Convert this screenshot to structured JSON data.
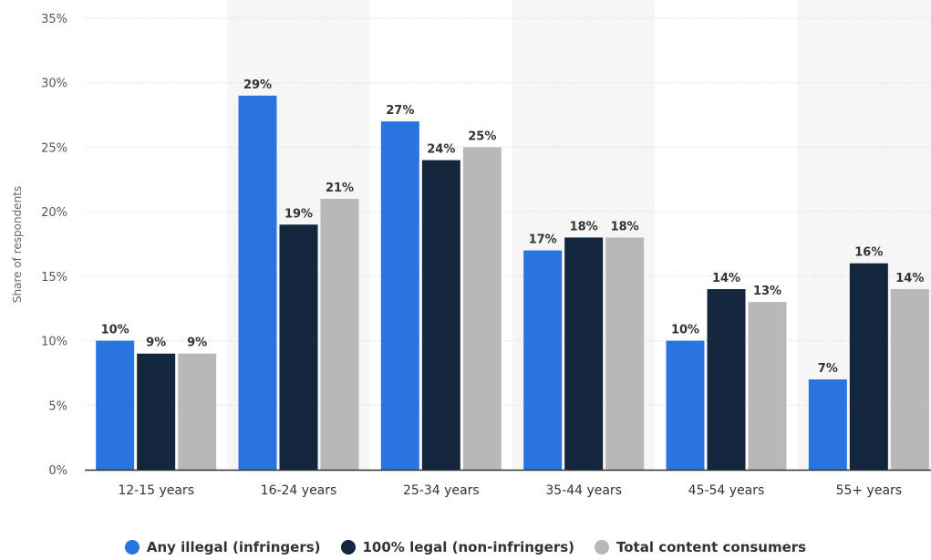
{
  "chart_data": {
    "type": "bar",
    "ylabel": "Share of respondents",
    "xlabel": "",
    "ylim": [
      0,
      35
    ],
    "yticks": [
      0,
      5,
      10,
      15,
      20,
      25,
      30,
      35
    ],
    "y_tick_suffix": "%",
    "categories": [
      "12-15 years",
      "16-24 years",
      "25-34 years",
      "35-44 years",
      "45-54 years",
      "55+ years"
    ],
    "series": [
      {
        "name": "Any illegal (infringers)",
        "color": "#2a74e0",
        "values": [
          10,
          29,
          27,
          17,
          10,
          7
        ]
      },
      {
        "name": "100% legal (non-infringers)",
        "color": "#13263d",
        "values": [
          9,
          19,
          24,
          18,
          14,
          16
        ]
      },
      {
        "name": "Total content consumers",
        "color": "#b8b8b8",
        "values": [
          9,
          21,
          25,
          18,
          13,
          14
        ]
      }
    ],
    "value_suffix": "%",
    "legend_position": "bottom",
    "grid": true,
    "alternating_band_color": "#f6f6f6"
  }
}
